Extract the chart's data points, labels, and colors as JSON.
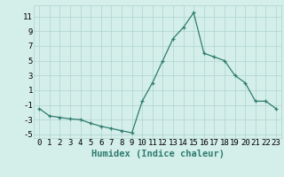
{
  "x": [
    0,
    1,
    2,
    3,
    4,
    5,
    6,
    7,
    8,
    9,
    10,
    11,
    12,
    13,
    14,
    15,
    16,
    17,
    18,
    19,
    20,
    21,
    22,
    23
  ],
  "y": [
    -1.5,
    -2.5,
    -2.7,
    -2.9,
    -3.0,
    -3.5,
    -3.9,
    -4.2,
    -4.5,
    -4.8,
    -0.5,
    2.0,
    5.0,
    8.0,
    9.5,
    11.5,
    6.0,
    5.5,
    5.0,
    3.0,
    2.0,
    -0.5,
    -0.5,
    -1.5
  ],
  "line_color": "#2e7d6e",
  "marker": "+",
  "marker_size": 3.5,
  "bg_color": "#d4eeea",
  "grid_color": "#aed4ce",
  "xlabel": "Humidex (Indice chaleur)",
  "xlabel_fontsize": 7.5,
  "tick_fontsize": 6.5,
  "ylim": [
    -5.5,
    12.5
  ],
  "xlim": [
    -0.5,
    23.5
  ],
  "yticks": [
    -5,
    -3,
    -1,
    1,
    3,
    5,
    7,
    9,
    11
  ],
  "xticks": [
    0,
    1,
    2,
    3,
    4,
    5,
    6,
    7,
    8,
    9,
    10,
    11,
    12,
    13,
    14,
    15,
    16,
    17,
    18,
    19,
    20,
    21,
    22,
    23
  ]
}
